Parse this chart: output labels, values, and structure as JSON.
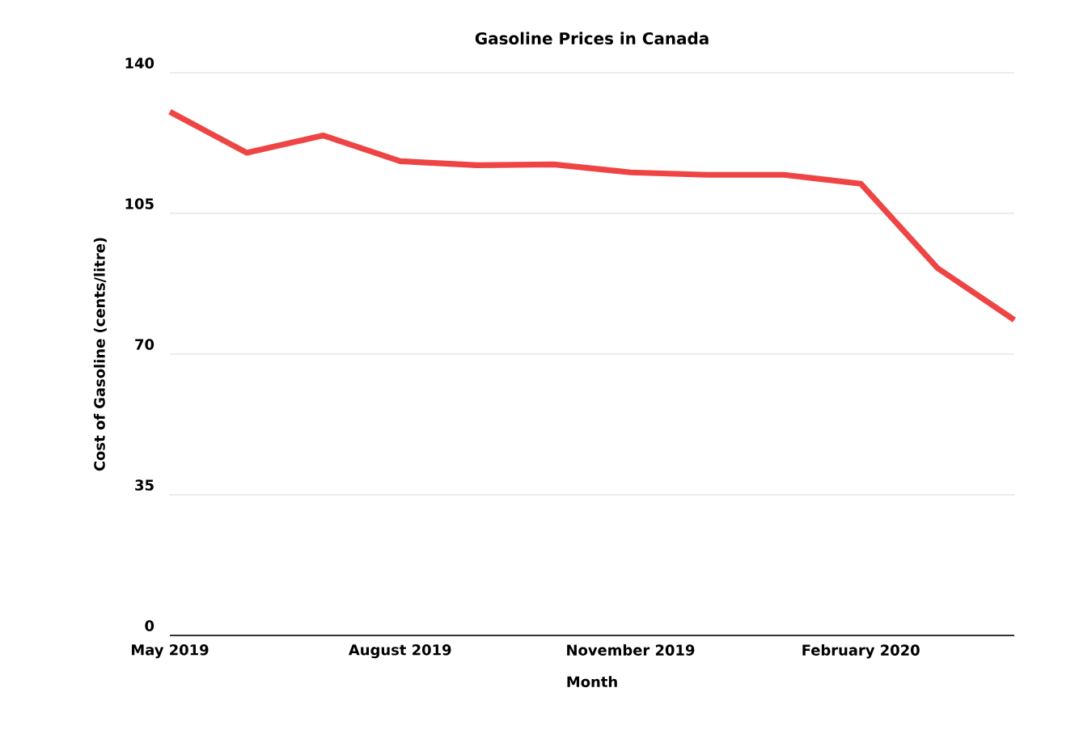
{
  "chart_data": {
    "type": "line",
    "title": "Gasoline Prices in Canada",
    "xlabel": "Month",
    "ylabel": "Cost of Gasoline (cents/litre)",
    "categories": [
      "May 2019",
      null,
      null,
      "August 2019",
      null,
      null,
      "November 2019",
      null,
      null,
      "February 2020",
      null,
      null
    ],
    "series": [
      {
        "color": "#ef4444",
        "values": [
          130.3,
          120.1,
          124.4,
          118.0,
          117.0,
          117.2,
          115.2,
          114.6,
          114.6,
          112.4,
          91.4,
          78.5
        ]
      }
    ],
    "ylim": [
      0,
      140
    ],
    "yticks": [
      0,
      35,
      70,
      105,
      140
    ],
    "grid": "y",
    "marker": "none",
    "line_style": "solid"
  }
}
